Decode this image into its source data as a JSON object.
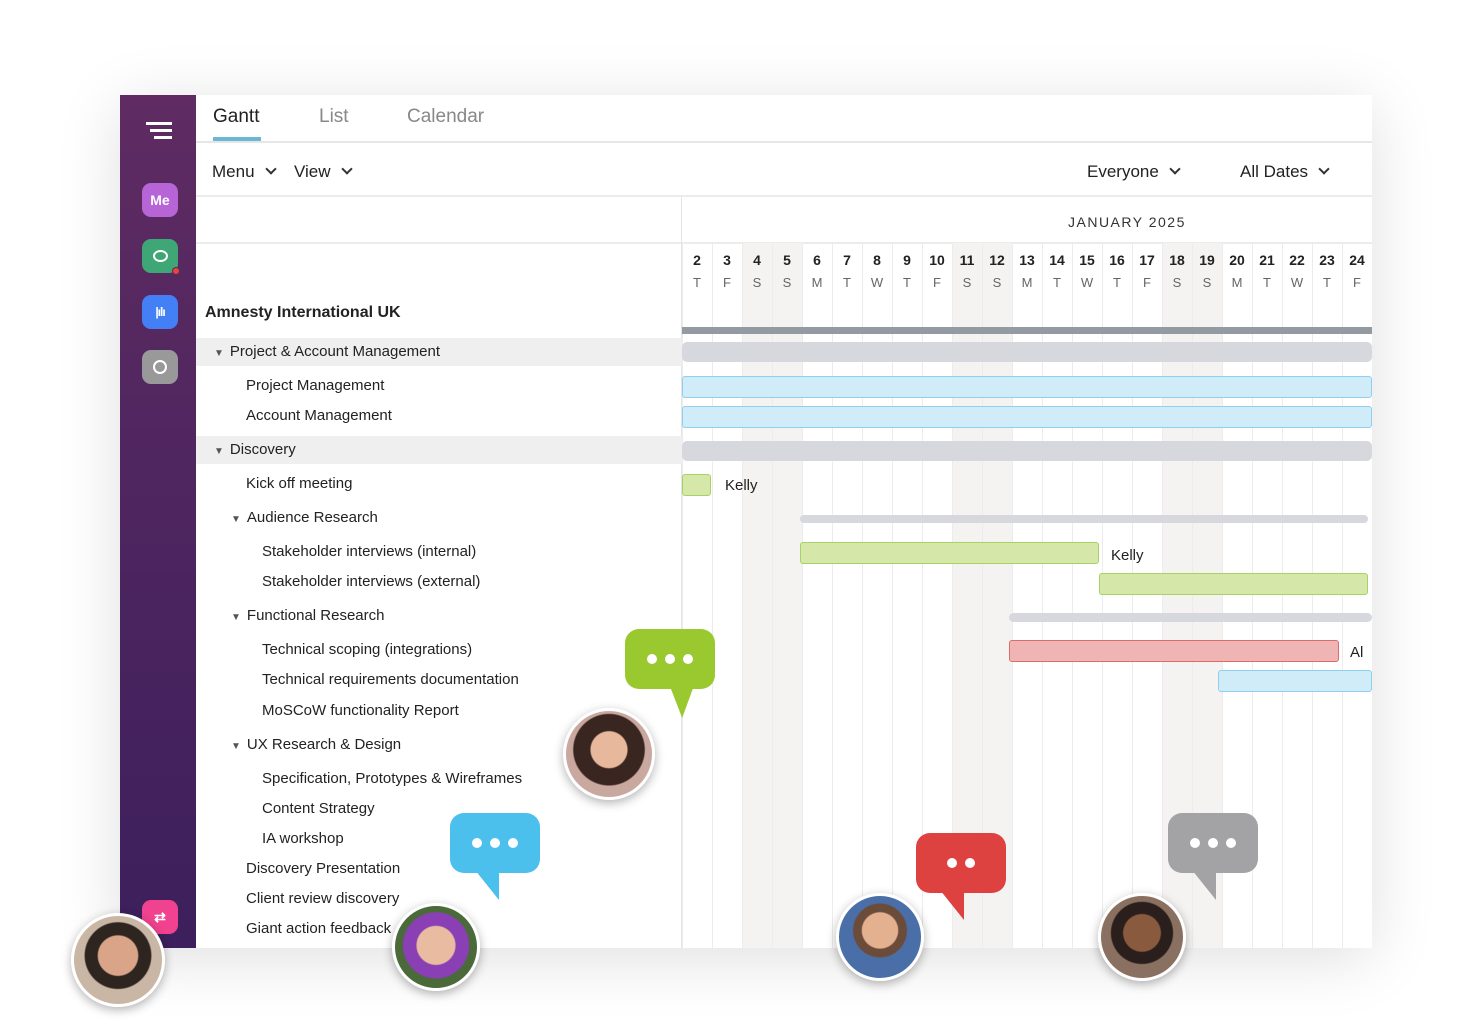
{
  "tabs": [
    "Gantt",
    "List",
    "Calendar"
  ],
  "toolbar": {
    "menu": "Menu",
    "view": "View",
    "everyone": "Everyone",
    "all_dates": "All Dates"
  },
  "sidebar": {
    "me": "Me"
  },
  "month": "JANUARY 2025",
  "dates": [
    {
      "d": "2",
      "w": "T"
    },
    {
      "d": "3",
      "w": "F"
    },
    {
      "d": "4",
      "w": "S"
    },
    {
      "d": "5",
      "w": "S"
    },
    {
      "d": "6",
      "w": "M"
    },
    {
      "d": "7",
      "w": "T"
    },
    {
      "d": "8",
      "w": "W"
    },
    {
      "d": "9",
      "w": "T"
    },
    {
      "d": "10",
      "w": "F"
    },
    {
      "d": "11",
      "w": "S"
    },
    {
      "d": "12",
      "w": "S"
    },
    {
      "d": "13",
      "w": "M"
    },
    {
      "d": "14",
      "w": "T"
    },
    {
      "d": "15",
      "w": "W"
    },
    {
      "d": "16",
      "w": "T"
    },
    {
      "d": "17",
      "w": "F"
    },
    {
      "d": "18",
      "w": "S"
    },
    {
      "d": "19",
      "w": "S"
    },
    {
      "d": "20",
      "w": "M"
    },
    {
      "d": "21",
      "w": "T"
    },
    {
      "d": "22",
      "w": "W"
    },
    {
      "d": "23",
      "w": "T"
    },
    {
      "d": "24",
      "w": "F"
    }
  ],
  "project": "Amnesty International UK",
  "tasks": [
    "Project & Account Management",
    "Project Management",
    "Account Management",
    "Discovery",
    "Kick off meeting",
    "Audience Research",
    "Stakeholder interviews (internal)",
    "Stakeholder interviews (external)",
    "Functional Research",
    "Technical scoping (integrations)",
    "Technical requirements documentation",
    "MoSCoW functionality Report",
    "UX Research & Design",
    "Specification, Prototypes & Wireframes",
    "Content Strategy",
    "IA workshop",
    "Discovery Presentation",
    "Client review discovery",
    "Giant action feedback"
  ],
  "assignees": {
    "kickoff": "Kelly",
    "si_internal": "Kelly",
    "tech_scoping": "Al"
  }
}
